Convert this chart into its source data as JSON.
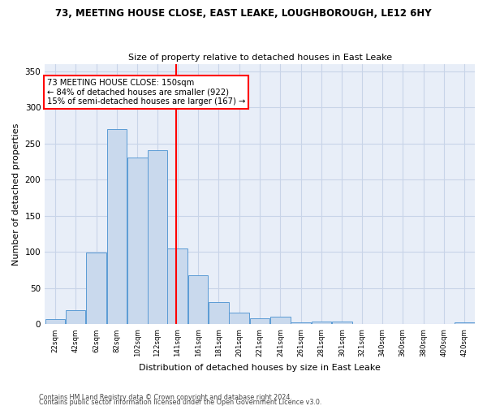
{
  "title": "73, MEETING HOUSE CLOSE, EAST LEAKE, LOUGHBOROUGH, LE12 6HY",
  "subtitle": "Size of property relative to detached houses in East Leake",
  "xlabel": "Distribution of detached houses by size in East Leake",
  "ylabel": "Number of detached properties",
  "bar_color": "#c9d9ed",
  "bar_edge_color": "#5b9bd5",
  "bin_labels": [
    "22sqm",
    "42sqm",
    "62sqm",
    "82sqm",
    "102sqm",
    "122sqm",
    "141sqm",
    "161sqm",
    "181sqm",
    "201sqm",
    "221sqm",
    "241sqm",
    "261sqm",
    "281sqm",
    "301sqm",
    "321sqm",
    "340sqm",
    "360sqm",
    "380sqm",
    "400sqm",
    "420sqm"
  ],
  "bar_values": [
    7,
    20,
    99,
    270,
    231,
    241,
    105,
    68,
    31,
    16,
    8,
    11,
    3,
    4,
    4,
    0,
    0,
    0,
    0,
    0,
    3
  ],
  "vline_x": 150,
  "annotation_text": "73 MEETING HOUSE CLOSE: 150sqm\n← 84% of detached houses are smaller (922)\n15% of semi-detached houses are larger (167) →",
  "annotation_box_color": "white",
  "annotation_box_edge_color": "red",
  "vline_color": "red",
  "ylim": [
    0,
    360
  ],
  "yticks": [
    0,
    50,
    100,
    150,
    200,
    250,
    300,
    350
  ],
  "footnote1": "Contains HM Land Registry data © Crown copyright and database right 2024.",
  "footnote2": "Contains public sector information licensed under the Open Government Licence v3.0.",
  "bin_edges": [
    22,
    42,
    62,
    82,
    102,
    122,
    141,
    161,
    181,
    201,
    221,
    241,
    261,
    281,
    301,
    321,
    340,
    360,
    380,
    400,
    420,
    440
  ],
  "bg_color": "#e8eef8",
  "grid_color": "#c8d4e8"
}
